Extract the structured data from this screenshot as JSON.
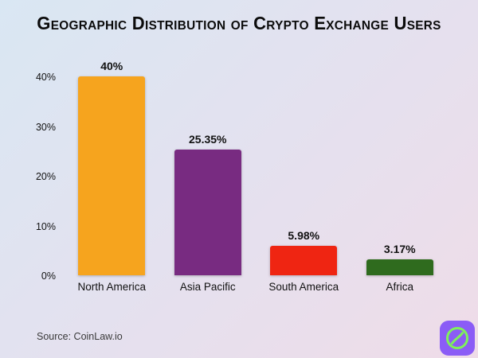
{
  "title": "Geographic Distribution of Crypto Exchange Users",
  "source": "Source: CoinLaw.io",
  "chart_data": {
    "type": "bar",
    "title": "Geographic Distribution of Crypto Exchange Users",
    "categories": [
      "North America",
      "Asia Pacific",
      "South America",
      "Africa"
    ],
    "values": [
      40,
      25.35,
      5.98,
      3.17
    ],
    "value_labels": [
      "40%",
      "25.35%",
      "5.98%",
      "3.17%"
    ],
    "bar_colors": [
      "#F6A41E",
      "#782B81",
      "#EF2512",
      "#2F6B1E"
    ],
    "xlabel": "",
    "ylabel": "",
    "ylim": [
      0,
      40
    ],
    "yticks": [
      0,
      10,
      20,
      30,
      40
    ],
    "ytick_labels": [
      "0%",
      "10%",
      "20%",
      "30%",
      "40%"
    ],
    "grid": false,
    "legend": false
  },
  "theme": {
    "bg_top_left": "#d9e7f3",
    "bg_mid": "#e4e1ef",
    "bg_bottom_right": "#efdce8",
    "text_color": "#111111"
  },
  "logo": {
    "name": "coinlaw-logo",
    "bg_color": "#8B5CF6",
    "icon_color": "#7FF25A"
  }
}
